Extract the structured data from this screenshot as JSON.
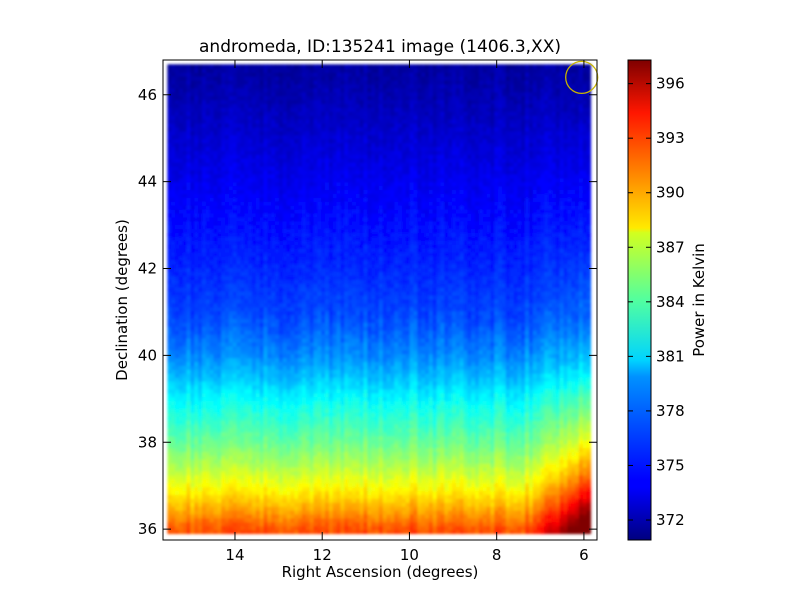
{
  "chart_data": {
    "type": "heatmap",
    "title": "andromeda, ID:135241 image (1406.3,XX)",
    "xlabel": "Right Ascension (degrees)",
    "ylabel": "Declination (degrees)",
    "xlim": [
      15.65,
      5.7
    ],
    "ylim": [
      35.75,
      46.8
    ],
    "x_ticks": [
      14,
      12,
      10,
      8,
      6
    ],
    "y_ticks": [
      36,
      38,
      40,
      42,
      44,
      46
    ],
    "x_tick_labels": [
      "14",
      "12",
      "10",
      "8",
      "6"
    ],
    "y_tick_labels": [
      "36",
      "38",
      "40",
      "42",
      "44",
      "46"
    ],
    "colorbar": {
      "label": "Power in Kelvin",
      "min": 370.9,
      "max": 397.3,
      "ticks": [
        372,
        375,
        378,
        381,
        384,
        387,
        390,
        393,
        396
      ],
      "tick_labels": [
        "372",
        "375",
        "378",
        "381",
        "384",
        "387",
        "390",
        "393",
        "396"
      ],
      "colormap": "jet"
    },
    "data_coverage": {
      "ra_range": [
        15.55,
        5.85
      ],
      "dec_range": [
        35.9,
        46.7
      ]
    },
    "field_profile": {
      "dec": [
        36.0,
        36.5,
        37.0,
        37.5,
        38.0,
        38.5,
        39.0,
        39.5,
        40.0,
        40.5,
        41.0,
        42.0,
        43.0,
        44.0,
        45.0,
        46.0,
        46.6
      ],
      "kelvin": [
        392.0,
        389.5,
        387.2,
        385.3,
        383.6,
        382.2,
        380.8,
        379.2,
        377.8,
        376.8,
        376.0,
        375.2,
        374.5,
        373.8,
        373.0,
        372.2,
        371.8
      ]
    },
    "edge_enhancement": {
      "ra_start": 7.5,
      "ra_end": 5.85,
      "max_extra_kelvin": 10,
      "dec_scale": 2.5
    },
    "beam_marker": {
      "ra": 6.05,
      "dec": 46.4,
      "color": "#c8b400"
    }
  }
}
